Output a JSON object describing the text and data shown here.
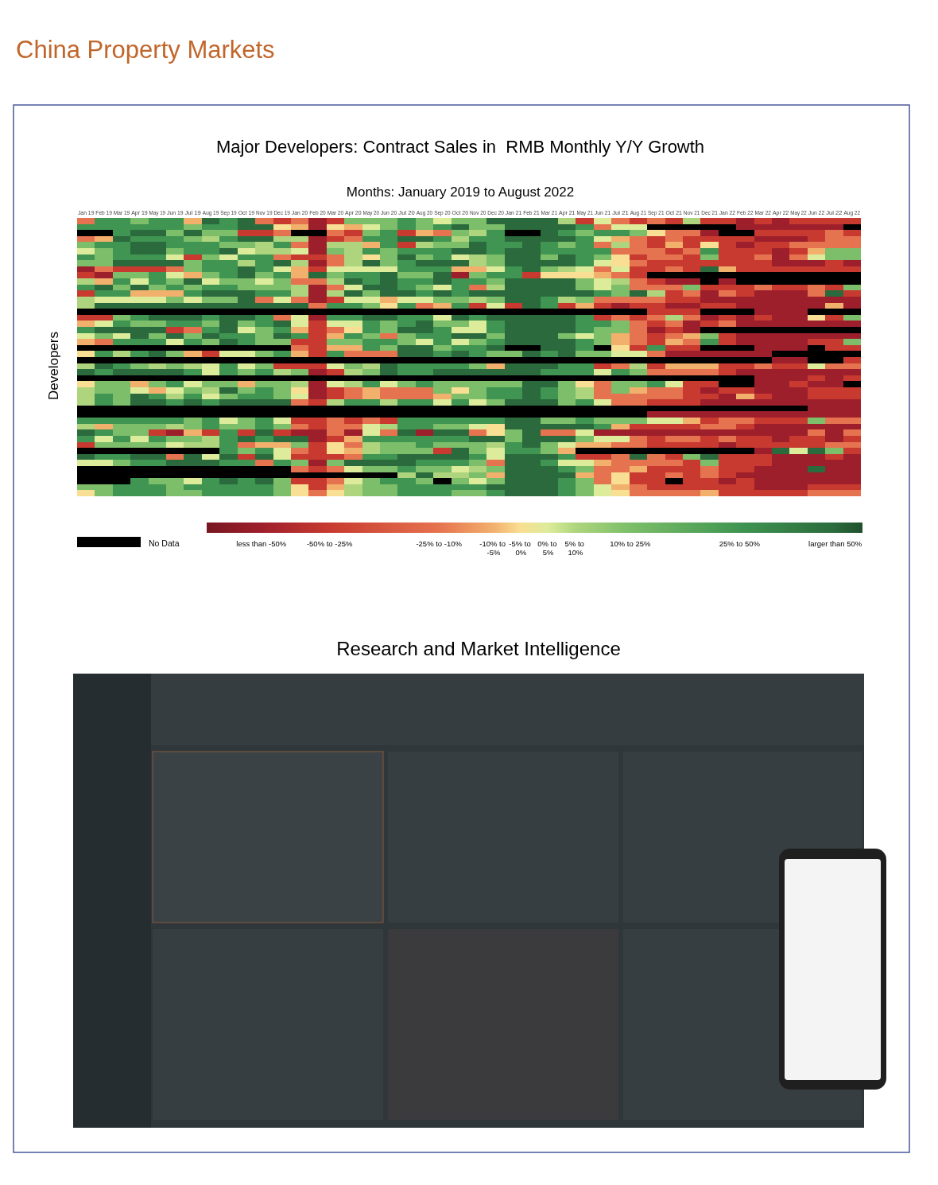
{
  "chart_data": [
    {
      "type": "other",
      "title": "China Property Markets"
    },
    {
      "type": "heatmap",
      "title": "Major Developers: Contract Sales in  RMB Monthly Y/Y Growth",
      "subtitle": "Months: January 2019 to August 2022",
      "ylabel": "Developers",
      "categories": [
        "Jan 19",
        "Feb 19",
        "Mar 19",
        "Apr 19",
        "May 19",
        "Jun 19",
        "Jul 19",
        "Aug 19",
        "Sep 19",
        "Oct 19",
        "Nov 19",
        "Dec 19",
        "Jan 20",
        "Feb 20",
        "Mar 20",
        "Apr 20",
        "May 20",
        "Jun 20",
        "Jul 20",
        "Aug 20",
        "Sep 20",
        "Oct 20",
        "Nov 20",
        "Dec 20",
        "Jan 21",
        "Feb 21",
        "Mar 21",
        "Apr 21",
        "May 21",
        "Jun 21",
        "Jul 21",
        "Aug 21",
        "Sep 21",
        "Oct 21",
        "Nov 21",
        "Dec 21",
        "Jan 22",
        "Feb 22",
        "Mar 22",
        "Apr 22",
        "May 22",
        "Jun 22",
        "Jul 22",
        "Aug 22"
      ],
      "y_categories": [
        null,
        null,
        null,
        null,
        null,
        null,
        null,
        null,
        null,
        null,
        null,
        null,
        null,
        null,
        null,
        null,
        null,
        null,
        null,
        null,
        null,
        null,
        null,
        null,
        null,
        null,
        null,
        null,
        null,
        null,
        null,
        null,
        null,
        null,
        null,
        null,
        null,
        null,
        null,
        null,
        null,
        null,
        null,
        null,
        null,
        null
      ],
      "cells": [
        [
          -17.5,
          37.5,
          37.5,
          17.5,
          37.5,
          37.5,
          -7.5,
          55,
          37.5,
          55,
          -17.5,
          -37.5,
          -17.5,
          -50,
          -37.5,
          17.5,
          17.5,
          17.5,
          37.5,
          17.5,
          2.5,
          17.5,
          17.5,
          55,
          55,
          55,
          55,
          7.5,
          -37.5,
          2.5,
          -17.5,
          -37.5,
          -17.5,
          -37.5,
          7.5,
          -37.5,
          -37.5,
          -50,
          -37.5,
          -50,
          -37.5,
          -37.5,
          -37.5,
          -37.5
        ],
        [
          37.5,
          37.5,
          37.5,
          37.5,
          37.5,
          37.5,
          17.5,
          37.5,
          37.5,
          55,
          55,
          -2.5,
          -7.5,
          -50,
          -2.5,
          -7.5,
          2.5,
          17.5,
          37.5,
          17.5,
          37.5,
          55,
          17.5,
          17.5,
          55,
          55,
          55,
          55,
          37.5,
          -17.5,
          2.5,
          2.5,
          null,
          null,
          null,
          null,
          null,
          -50,
          -50,
          -50,
          -50,
          -50,
          -50,
          null
        ],
        [
          null,
          null,
          37.5,
          55,
          55,
          17.5,
          55,
          17.5,
          17.5,
          -37.5,
          -37.5,
          -17.5,
          null,
          null,
          -17.5,
          -37.5,
          17.5,
          37.5,
          -37.5,
          -7.5,
          -17.5,
          17.5,
          7.5,
          37.5,
          null,
          null,
          55,
          37.5,
          17.5,
          37.5,
          37.5,
          17.5,
          -2.5,
          -17.5,
          -17.5,
          -50,
          null,
          null,
          -37.5,
          -37.5,
          -37.5,
          -37.5,
          -17.5,
          -37.5
        ],
        [
          -17.5,
          -7.5,
          55,
          37.5,
          37.5,
          37.5,
          17.5,
          7.5,
          37.5,
          55,
          55,
          7.5,
          7.5,
          -50,
          -37.5,
          -17.5,
          37.5,
          37.5,
          55,
          55,
          37.5,
          7.5,
          37.5,
          37.5,
          55,
          55,
          55,
          55,
          37.5,
          2.5,
          -7.5,
          -17.5,
          -37.5,
          -17.5,
          -37.5,
          -37.5,
          -37.5,
          -37.5,
          -50,
          -50,
          -50,
          -37.5,
          -17.5,
          -17.5
        ],
        [
          17.5,
          37.5,
          37.5,
          55,
          55,
          37.5,
          37.5,
          37.5,
          17.5,
          17.5,
          7.5,
          37.5,
          -17.5,
          -50,
          7.5,
          7.5,
          -7.5,
          37.5,
          -37.5,
          7.5,
          17.5,
          17.5,
          55,
          37.5,
          37.5,
          55,
          37.5,
          17.5,
          37.5,
          -17.5,
          7.5,
          -17.5,
          -37.5,
          -7.5,
          -37.5,
          -2.5,
          -37.5,
          -50,
          -37.5,
          -37.5,
          -17.5,
          -17.5,
          -17.5,
          -17.5
        ],
        [
          2.5,
          17.5,
          37.5,
          55,
          55,
          17.5,
          37.5,
          37.5,
          55,
          2.5,
          7.5,
          7.5,
          2.5,
          -50,
          17.5,
          7.5,
          37.5,
          17.5,
          37.5,
          37.5,
          37.5,
          55,
          55,
          37.5,
          55,
          55,
          37.5,
          37.5,
          37.5,
          37.5,
          -17.5,
          -17.5,
          -17.5,
          -37.5,
          -17.5,
          37.5,
          -37.5,
          -37.5,
          -37.5,
          -50,
          -37.5,
          -7.5,
          17.5,
          17.5
        ],
        [
          37.5,
          17.5,
          37.5,
          37.5,
          37.5,
          2.5,
          -37.5,
          17.5,
          2.5,
          37.5,
          37.5,
          -17.5,
          -37.5,
          -37.5,
          -17.5,
          7.5,
          -2.5,
          17.5,
          55,
          17.5,
          37.5,
          2.5,
          7.5,
          17.5,
          55,
          55,
          17.5,
          55,
          37.5,
          17.5,
          -2.5,
          -37.5,
          -17.5,
          -17.5,
          -37.5,
          17.5,
          -37.5,
          -37.5,
          -17.5,
          -50,
          -17.5,
          2.5,
          17.5,
          17.5
        ],
        [
          17.5,
          17.5,
          55,
          55,
          55,
          55,
          17.5,
          37.5,
          37.5,
          7.5,
          37.5,
          55,
          7.5,
          -50,
          -17.5,
          7.5,
          55,
          17.5,
          37.5,
          55,
          55,
          55,
          7.5,
          17.5,
          55,
          55,
          55,
          55,
          37.5,
          2.5,
          -2.5,
          -17.5,
          -37.5,
          -37.5,
          -37.5,
          -37.5,
          -37.5,
          -37.5,
          -37.5,
          -50,
          -50,
          -50,
          -37.5,
          -50
        ],
        [
          -50,
          -17.5,
          -37.5,
          -37.5,
          -37.5,
          -17.5,
          17.5,
          37.5,
          37.5,
          55,
          37.5,
          2.5,
          -7.5,
          -37.5,
          2.5,
          2.5,
          2.5,
          2.5,
          37.5,
          37.5,
          37.5,
          -7.5,
          -7.5,
          2.5,
          37.5,
          55,
          17.5,
          7.5,
          2.5,
          -17.5,
          2.5,
          -37.5,
          -37.5,
          -17.5,
          -37.5,
          55,
          -7.5,
          -37.5,
          -37.5,
          -37.5,
          -37.5,
          -37.5,
          -37.5,
          -37.5
        ],
        [
          -37.5,
          -50,
          17.5,
          17.5,
          37.5,
          2.5,
          -7.5,
          17.5,
          37.5,
          55,
          17.5,
          37.5,
          -7.5,
          55,
          17.5,
          37.5,
          37.5,
          55,
          17.5,
          17.5,
          55,
          -50,
          17.5,
          37.5,
          37.5,
          -37.5,
          -2.5,
          -2.5,
          -2.5,
          -7.5,
          -17.5,
          -37.5,
          null,
          null,
          null,
          null,
          null,
          null,
          null,
          null,
          null,
          null,
          null,
          null
        ],
        [
          7.5,
          -7.5,
          37.5,
          2.5,
          37.5,
          17.5,
          55,
          2.5,
          17.5,
          17.5,
          2.5,
          17.5,
          -17.5,
          -17.5,
          7.5,
          55,
          37.5,
          55,
          37.5,
          37.5,
          55,
          37.5,
          37.5,
          17.5,
          55,
          55,
          55,
          55,
          17.5,
          2.5,
          7.5,
          -17.5,
          -37.5,
          -50,
          -50,
          null,
          -50,
          null,
          null,
          null,
          null,
          null,
          null,
          null
        ],
        [
          37.5,
          55,
          17.5,
          55,
          17.5,
          37.5,
          17.5,
          37.5,
          37.5,
          17.5,
          17.5,
          17.5,
          7.5,
          -50,
          -17.5,
          2.5,
          55,
          55,
          37.5,
          17.5,
          2.5,
          37.5,
          -17.5,
          7.5,
          55,
          55,
          55,
          55,
          17.5,
          2.5,
          17.5,
          -17.5,
          -17.5,
          -17.5,
          17.5,
          -37.5,
          -37.5,
          -37.5,
          -17.5,
          -37.5,
          -37.5,
          -17.5,
          -37.5,
          17.5
        ],
        [
          -37.5,
          37.5,
          37.5,
          -7.5,
          -7.5,
          -7.5,
          37.5,
          55,
          55,
          55,
          37.5,
          37.5,
          7.5,
          -50,
          7.5,
          55,
          17.5,
          55,
          55,
          37.5,
          55,
          37.5,
          55,
          55,
          55,
          55,
          55,
          55,
          55,
          37.5,
          17.5,
          55,
          7.5,
          -37.5,
          -17.5,
          -50,
          -17.5,
          -37.5,
          -50,
          -50,
          -50,
          -17.5,
          55,
          -37.5
        ],
        [
          7.5,
          2.5,
          2.5,
          2.5,
          2.5,
          17.5,
          2.5,
          17.5,
          17.5,
          55,
          -17.5,
          2.5,
          -17.5,
          -50,
          -37.5,
          2.5,
          2.5,
          -7.5,
          2.5,
          2.5,
          17.5,
          17.5,
          7.5,
          17.5,
          55,
          55,
          37.5,
          7.5,
          17.5,
          -17.5,
          -17.5,
          -17.5,
          -17.5,
          -37.5,
          -37.5,
          -50,
          -50,
          -50,
          -50,
          -50,
          -50,
          -50,
          -50,
          -50
        ],
        [
          7.5,
          55,
          55,
          55,
          55,
          55,
          55,
          55,
          55,
          55,
          55,
          55,
          55,
          -17.5,
          37.5,
          37.5,
          17.5,
          -2.5,
          37.5,
          -17.5,
          -7.5,
          37.5,
          -37.5,
          2.5,
          -37.5,
          55,
          37.5,
          -37.5,
          -7.5,
          -37.5,
          -50,
          -37.5,
          -37.5,
          -50,
          -50,
          -37.5,
          -37.5,
          -50,
          -50,
          -50,
          -50,
          -50,
          -7.5,
          -50
        ],
        [
          null,
          null,
          null,
          null,
          null,
          null,
          null,
          null,
          null,
          null,
          null,
          null,
          null,
          null,
          null,
          null,
          null,
          null,
          null,
          null,
          null,
          null,
          null,
          null,
          null,
          null,
          null,
          null,
          null,
          null,
          null,
          null,
          -37.5,
          -37.5,
          -37.5,
          null,
          null,
          null,
          -50,
          -50,
          -50,
          null,
          null,
          null
        ],
        [
          -37.5,
          -37.5,
          17.5,
          37.5,
          55,
          55,
          55,
          37.5,
          55,
          55,
          37.5,
          -17.5,
          2.5,
          -50,
          37.5,
          37.5,
          55,
          55,
          37.5,
          37.5,
          2.5,
          55,
          37.5,
          55,
          55,
          55,
          55,
          55,
          37.5,
          -37.5,
          -17.5,
          -37.5,
          -17.5,
          7.5,
          -17.5,
          -50,
          -37.5,
          -50,
          -37.5,
          -50,
          -50,
          -2.5,
          -37.5,
          17.5
        ],
        [
          -7.5,
          2.5,
          37.5,
          17.5,
          17.5,
          37.5,
          37.5,
          17.5,
          55,
          17.5,
          37.5,
          55,
          2.5,
          -37.5,
          2.5,
          2.5,
          37.5,
          17.5,
          37.5,
          55,
          17.5,
          17.5,
          2.5,
          37.5,
          55,
          55,
          55,
          55,
          37.5,
          37.5,
          17.5,
          -17.5,
          -37.5,
          -17.5,
          -50,
          -37.5,
          -17.5,
          -50,
          -50,
          -50,
          -50,
          -50,
          -50,
          -50
        ],
        [
          37.5,
          55,
          55,
          55,
          55,
          -37.5,
          -17.5,
          37.5,
          55,
          2.5,
          17.5,
          37.5,
          -7.5,
          -37.5,
          -17.5,
          -2.5,
          37.5,
          17.5,
          55,
          55,
          37.5,
          2.5,
          2.5,
          37.5,
          55,
          55,
          55,
          55,
          37.5,
          17.5,
          17.5,
          -17.5,
          -50,
          -37.5,
          -50,
          null,
          null,
          null,
          null,
          null,
          null,
          null,
          null,
          null
        ],
        [
          2.5,
          17.5,
          2.5,
          55,
          17.5,
          55,
          17.5,
          55,
          37.5,
          37.5,
          17.5,
          55,
          37.5,
          -37.5,
          -7.5,
          37.5,
          17.5,
          -17.5,
          17.5,
          37.5,
          37.5,
          55,
          55,
          17.5,
          55,
          55,
          55,
          17.5,
          2.5,
          17.5,
          -7.5,
          -17.5,
          -37.5,
          -17.5,
          -7.5,
          17.5,
          -37.5,
          -50,
          -50,
          -50,
          -50,
          -50,
          -50,
          -50
        ],
        [
          -7.5,
          -17.5,
          37.5,
          37.5,
          37.5,
          2.5,
          37.5,
          17.5,
          55,
          37.5,
          17.5,
          17.5,
          -37.5,
          -37.5,
          17.5,
          17.5,
          37.5,
          37.5,
          17.5,
          2.5,
          37.5,
          2.5,
          17.5,
          37.5,
          55,
          55,
          55,
          55,
          37.5,
          17.5,
          -7.5,
          -17.5,
          -37.5,
          -7.5,
          -17.5,
          37.5,
          -37.5,
          -50,
          -50,
          -50,
          -50,
          -37.5,
          -37.5,
          17.5
        ],
        [
          null,
          null,
          null,
          null,
          null,
          null,
          null,
          null,
          null,
          null,
          null,
          null,
          -17.5,
          -37.5,
          -7.5,
          -7.5,
          37.5,
          17.5,
          55,
          55,
          17.5,
          37.5,
          37.5,
          55,
          null,
          null,
          55,
          55,
          37.5,
          null,
          -2.5,
          -37.5,
          37.5,
          -37.5,
          -37.5,
          null,
          null,
          null,
          -50,
          -50,
          -50,
          null,
          -37.5,
          -37.5
        ],
        [
          -2.5,
          37.5,
          7.5,
          37.5,
          55,
          17.5,
          -7.5,
          -37.5,
          2.5,
          2.5,
          17.5,
          37.5,
          -7.5,
          -37.5,
          37.5,
          -17.5,
          -17.5,
          -17.5,
          55,
          55,
          37.5,
          55,
          37.5,
          17.5,
          17.5,
          55,
          37.5,
          55,
          17.5,
          17.5,
          2.5,
          2.5,
          -17.5,
          -50,
          -50,
          -50,
          -50,
          -50,
          -50,
          null,
          null,
          null,
          null,
          null
        ],
        [
          null,
          null,
          null,
          null,
          null,
          null,
          null,
          null,
          null,
          null,
          null,
          null,
          null,
          null,
          null,
          null,
          null,
          null,
          null,
          null,
          null,
          null,
          null,
          null,
          null,
          null,
          null,
          null,
          null,
          null,
          null,
          null,
          null,
          null,
          null,
          null,
          null,
          null,
          null,
          -50,
          -50,
          null,
          null,
          -37.5
        ],
        [
          7.5,
          55,
          37.5,
          17.5,
          7.5,
          17.5,
          7.5,
          2.5,
          37.5,
          2.5,
          17.5,
          -37.5,
          -37.5,
          -37.5,
          2.5,
          17.5,
          7.5,
          55,
          37.5,
          37.5,
          37.5,
          37.5,
          17.5,
          -7.5,
          55,
          55,
          55,
          37.5,
          37.5,
          -37.5,
          -17.5,
          7.5,
          -37.5,
          -7.5,
          -7.5,
          -7.5,
          -37.5,
          -37.5,
          -17.5,
          -37.5,
          -37.5,
          2.5,
          -17.5,
          -17.5
        ],
        [
          55,
          37.5,
          55,
          55,
          55,
          55,
          37.5,
          2.5,
          37.5,
          17.5,
          37.5,
          7.5,
          17.5,
          -50,
          -37.5,
          7.5,
          17.5,
          55,
          37.5,
          37.5,
          55,
          55,
          55,
          55,
          55,
          55,
          37.5,
          37.5,
          37.5,
          2.5,
          37.5,
          17.5,
          -17.5,
          -17.5,
          -17.5,
          -17.5,
          -37.5,
          -50,
          -50,
          -50,
          -50,
          -50,
          -50,
          -50
        ],
        [
          null,
          null,
          null,
          null,
          null,
          null,
          null,
          null,
          null,
          null,
          null,
          null,
          null,
          null,
          null,
          null,
          null,
          null,
          null,
          null,
          null,
          null,
          null,
          null,
          null,
          null,
          null,
          null,
          null,
          null,
          null,
          null,
          null,
          null,
          null,
          null,
          null,
          null,
          -50,
          -50,
          -50,
          -37.5,
          -50,
          -37.5
        ],
        [
          -2.5,
          17.5,
          17.5,
          -7.5,
          17.5,
          37.5,
          2.5,
          17.5,
          17.5,
          -7.5,
          17.5,
          17.5,
          7.5,
          -50,
          2.5,
          7.5,
          37.5,
          2.5,
          17.5,
          37.5,
          17.5,
          17.5,
          17.5,
          17.5,
          17.5,
          55,
          55,
          17.5,
          -2.5,
          -17.5,
          17.5,
          17.5,
          37.5,
          2.5,
          -37.5,
          -37.5,
          null,
          null,
          -50,
          -50,
          -37.5,
          -50,
          -50,
          null
        ],
        [
          7.5,
          17.5,
          17.5,
          2.5,
          -7.5,
          2.5,
          17.5,
          7.5,
          55,
          17.5,
          37.5,
          17.5,
          -2.5,
          -50,
          -37.5,
          -17.5,
          -7.5,
          -17.5,
          -17.5,
          -17.5,
          17.5,
          -2.5,
          17.5,
          37.5,
          37.5,
          55,
          37.5,
          17.5,
          7.5,
          -17.5,
          17.5,
          -7.5,
          -17.5,
          -17.5,
          -37.5,
          -50,
          -37.5,
          -37.5,
          -50,
          -50,
          -50,
          -37.5,
          -37.5,
          -37.5
        ],
        [
          7.5,
          37.5,
          17.5,
          55,
          37.5,
          7.5,
          37.5,
          2.5,
          17.5,
          37.5,
          37.5,
          17.5,
          2.5,
          -50,
          -37.5,
          -17.5,
          -7.5,
          -17.5,
          -17.5,
          -17.5,
          -7.5,
          17.5,
          17.5,
          37.5,
          37.5,
          55,
          37.5,
          17.5,
          7.5,
          -17.5,
          -17.5,
          -17.5,
          -17.5,
          -17.5,
          -37.5,
          -37.5,
          -50,
          -7.5,
          -37.5,
          -50,
          -50,
          -37.5,
          -37.5,
          -37.5
        ],
        [
          7.5,
          37.5,
          17.5,
          55,
          55,
          37.5,
          55,
          37.5,
          55,
          55,
          55,
          55,
          -17.5,
          -37.5,
          7.5,
          37.5,
          37.5,
          7.5,
          37.5,
          37.5,
          2.5,
          37.5,
          2.5,
          17.5,
          55,
          55,
          55,
          17.5,
          37.5,
          2.5,
          -17.5,
          -17.5,
          -37.5,
          -37.5,
          -37.5,
          -50,
          -50,
          -50,
          -50,
          -50,
          -50,
          -50,
          -50,
          -50
        ],
        [
          null,
          null,
          null,
          null,
          null,
          null,
          null,
          null,
          null,
          null,
          null,
          null,
          null,
          null,
          null,
          null,
          null,
          null,
          null,
          null,
          null,
          null,
          null,
          null,
          null,
          null,
          null,
          null,
          null,
          null,
          null,
          null,
          null,
          null,
          null,
          null,
          null,
          null,
          null,
          null,
          null,
          -50,
          -50,
          -50
        ],
        [
          null,
          null,
          null,
          null,
          null,
          null,
          null,
          null,
          null,
          null,
          null,
          null,
          null,
          null,
          null,
          null,
          null,
          null,
          null,
          null,
          null,
          null,
          null,
          null,
          null,
          null,
          null,
          null,
          null,
          null,
          null,
          null,
          -50,
          -50,
          -50,
          -50,
          -50,
          -50,
          -50,
          -50,
          -50,
          -50,
          -50,
          -50
        ],
        [
          37.5,
          37.5,
          37.5,
          37.5,
          37.5,
          37.5,
          17.5,
          37.5,
          2.5,
          17.5,
          37.5,
          2.5,
          -37.5,
          -37.5,
          -17.5,
          -37.5,
          -17.5,
          -37.5,
          37.5,
          37.5,
          37.5,
          37.5,
          37.5,
          37.5,
          55,
          55,
          17.5,
          17.5,
          37.5,
          17.5,
          17.5,
          17.5,
          2.5,
          2.5,
          -7.5,
          -37.5,
          -17.5,
          -17.5,
          -37.5,
          -37.5,
          -37.5,
          17.5,
          -17.5,
          -17.5
        ],
        [
          7.5,
          -7.5,
          17.5,
          17.5,
          17.5,
          7.5,
          17.5,
          37.5,
          17.5,
          17.5,
          37.5,
          17.5,
          -17.5,
          -37.5,
          -17.5,
          -17.5,
          2.5,
          7.5,
          37.5,
          37.5,
          17.5,
          17.5,
          2.5,
          -2.5,
          55,
          55,
          55,
          55,
          55,
          37.5,
          -7.5,
          -37.5,
          -37.5,
          -37.5,
          -37.5,
          -17.5,
          -17.5,
          -37.5,
          -50,
          -50,
          -50,
          -50,
          -50,
          -50
        ],
        [
          55,
          37.5,
          17.5,
          17.5,
          -37.5,
          -50,
          -7.5,
          -37.5,
          37.5,
          -37.5,
          55,
          -37.5,
          -50,
          -50,
          -17.5,
          -50,
          2.5,
          -17.5,
          55,
          -50,
          55,
          55,
          -17.5,
          -2.5,
          17.5,
          55,
          -17.5,
          -17.5,
          2.5,
          -50,
          -50,
          -50,
          -50,
          -50,
          -50,
          -50,
          -50,
          -50,
          -50,
          -50,
          -50,
          -17.5,
          -50,
          -17.5
        ],
        [
          37.5,
          2.5,
          37.5,
          2.5,
          37.5,
          17.5,
          17.5,
          7.5,
          37.5,
          55,
          37.5,
          55,
          55,
          -50,
          -37.5,
          -7.5,
          37.5,
          37.5,
          37.5,
          37.5,
          37.5,
          37.5,
          55,
          55,
          17.5,
          55,
          55,
          55,
          17.5,
          2.5,
          2.5,
          -17.5,
          -37.5,
          -17.5,
          -17.5,
          -37.5,
          -17.5,
          -37.5,
          -37.5,
          -50,
          -37.5,
          -37.5,
          -50,
          -37.5
        ],
        [
          -37.5,
          17.5,
          17.5,
          17.5,
          17.5,
          2.5,
          7.5,
          7.5,
          37.5,
          -17.5,
          -7.5,
          -7.5,
          17.5,
          -37.5,
          -2.5,
          -17.5,
          7.5,
          17.5,
          17.5,
          37.5,
          17.5,
          17.5,
          17.5,
          7.5,
          37.5,
          55,
          17.5,
          2.5,
          -7.5,
          -7.5,
          -17.5,
          -17.5,
          -37.5,
          -37.5,
          -37.5,
          -37.5,
          -50,
          -37.5,
          -37.5,
          -37.5,
          -37.5,
          -37.5,
          -17.5,
          -17.5
        ],
        [
          null,
          null,
          null,
          null,
          null,
          null,
          null,
          null,
          37.5,
          17.5,
          37.5,
          2.5,
          -17.5,
          -37.5,
          -2.5,
          -7.5,
          7.5,
          17.5,
          17.5,
          17.5,
          -37.5,
          55,
          17.5,
          2.5,
          37.5,
          37.5,
          17.5,
          -7.5,
          null,
          null,
          null,
          null,
          null,
          null,
          null,
          null,
          null,
          null,
          -50,
          55,
          2.5,
          55,
          17.5,
          -37.5
        ],
        [
          55,
          37.5,
          37.5,
          55,
          55,
          -17.5,
          55,
          2.5,
          55,
          -37.5,
          55,
          2.5,
          -37.5,
          -37.5,
          -37.5,
          -17.5,
          37.5,
          37.5,
          55,
          55,
          55,
          55,
          37.5,
          2.5,
          55,
          55,
          55,
          37.5,
          -37.5,
          -37.5,
          -17.5,
          55,
          -17.5,
          -37.5,
          17.5,
          55,
          -37.5,
          -37.5,
          -37.5,
          -50,
          -50,
          -50,
          -37.5,
          -50
        ],
        [
          2.5,
          2.5,
          17.5,
          37.5,
          37.5,
          55,
          55,
          55,
          37.5,
          37.5,
          -17.5,
          37.5,
          17.5,
          -50,
          17.5,
          55,
          55,
          55,
          55,
          37.5,
          37.5,
          37.5,
          17.5,
          -17.5,
          55,
          55,
          37.5,
          2.5,
          2.5,
          -7.5,
          -17.5,
          -17.5,
          -17.5,
          -17.5,
          -37.5,
          17.5,
          -37.5,
          -37.5,
          -37.5,
          -50,
          -50,
          -50,
          -50,
          -50
        ],
        [
          null,
          null,
          null,
          null,
          null,
          null,
          null,
          null,
          null,
          null,
          null,
          null,
          -17.5,
          -37.5,
          -17.5,
          2.5,
          17.5,
          17.5,
          37.5,
          17.5,
          17.5,
          2.5,
          7.5,
          17.5,
          55,
          55,
          55,
          37.5,
          17.5,
          -17.5,
          -17.5,
          -7.5,
          -37.5,
          -37.5,
          -37.5,
          -17.5,
          -37.5,
          -37.5,
          -50,
          -50,
          -50,
          55,
          -50,
          -50
        ],
        [
          null,
          null,
          null,
          null,
          null,
          null,
          null,
          null,
          null,
          null,
          null,
          null,
          null,
          null,
          null,
          null,
          null,
          null,
          7.5,
          55,
          7.5,
          7.5,
          17.5,
          -7.5,
          55,
          55,
          55,
          55,
          -7.5,
          -17.5,
          -2.5,
          -37.5,
          -37.5,
          -17.5,
          -37.5,
          -17.5,
          -37.5,
          -50,
          -50,
          -50,
          -50,
          -50,
          -50,
          -50
        ],
        [
          null,
          null,
          null,
          37.5,
          17.5,
          17.5,
          2.5,
          37.5,
          55,
          37.5,
          55,
          17.5,
          -37.5,
          -37.5,
          -17.5,
          2.5,
          17.5,
          37.5,
          37.5,
          17.5,
          null,
          17.5,
          2.5,
          17.5,
          55,
          55,
          55,
          37.5,
          17.5,
          -17.5,
          -2.5,
          -37.5,
          -37.5,
          null,
          -37.5,
          -37.5,
          -50,
          -37.5,
          -50,
          -50,
          -50,
          -50,
          -50,
          -50
        ],
        [
          17.5,
          17.5,
          37.5,
          37.5,
          37.5,
          17.5,
          37.5,
          37.5,
          37.5,
          37.5,
          37.5,
          17.5,
          -2.5,
          -37.5,
          -7.5,
          7.5,
          17.5,
          17.5,
          37.5,
          37.5,
          37.5,
          37.5,
          37.5,
          55,
          55,
          55,
          55,
          37.5,
          17.5,
          2.5,
          -7.5,
          -17.5,
          -37.5,
          -37.5,
          -37.5,
          -37.5,
          -37.5,
          -37.5,
          -50,
          -50,
          -50,
          -37.5,
          -37.5,
          -37.5
        ],
        [
          -2.5,
          17.5,
          37.5,
          37.5,
          37.5,
          17.5,
          17.5,
          37.5,
          37.5,
          37.5,
          37.5,
          17.5,
          -2.5,
          -17.5,
          -2.5,
          7.5,
          17.5,
          17.5,
          37.5,
          37.5,
          37.5,
          17.5,
          17.5,
          37.5,
          55,
          55,
          55,
          37.5,
          17.5,
          2.5,
          -2.5,
          -17.5,
          -17.5,
          -17.5,
          -17.5,
          -7.5,
          -37.5,
          -37.5,
          -37.5,
          -37.5,
          -37.5,
          -17.5,
          -17.5,
          -17.5
        ]
      ],
      "clim": [
        -60,
        60
      ],
      "cticks": [
        {
          "value": -50,
          "label": "less than -50%"
        },
        {
          "value": -37.5,
          "label": "-50% to -25%"
        },
        {
          "value": -17.5,
          "label": "-25% to -10%"
        },
        {
          "value": -7.5,
          "label": "-10% to -5%"
        },
        {
          "value": -2.5,
          "label": "-5% to 0%"
        },
        {
          "value": 2.5,
          "label": "0% to 5%"
        },
        {
          "value": 7.5,
          "label": "5% to 10%"
        },
        {
          "value": 17.5,
          "label": "10% to 25%"
        },
        {
          "value": 37.5,
          "label": "25% to 50%"
        },
        {
          "value": 55,
          "label": "larger than 50%"
        }
      ],
      "colors": [
        "#9e1f2c",
        "#c83a30",
        "#e6734f",
        "#f2b06d",
        "#f9df93",
        "#dcec9b",
        "#aed57d",
        "#7cbe69",
        "#3f9551",
        "#2b6a3c"
      ],
      "annotations": [
        "No Data"
      ]
    },
    {
      "type": "other",
      "title": "Research and Market Intelligence"
    }
  ]
}
